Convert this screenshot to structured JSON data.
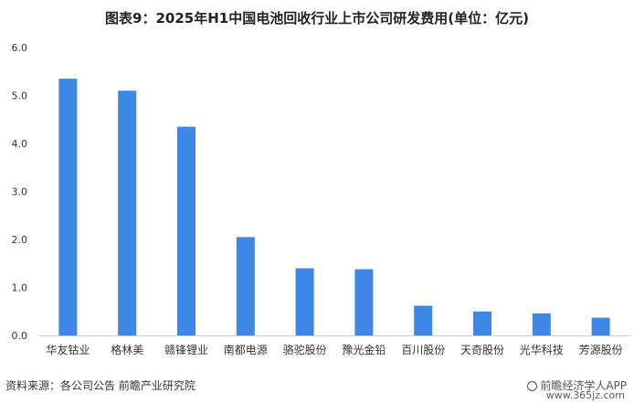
{
  "title": "图表9：2025年H1中国电池回收行业上市公司研发费用(单位：亿元)",
  "source": "资料来源：各公司公告 前瞻产业研究院",
  "brand": "前瞻经济学人APP",
  "site": "www.365jz.com",
  "colors": {
    "bar": "#3d87e6",
    "axis": "#cccccc",
    "text": "#333333"
  },
  "chart_data": {
    "type": "bar",
    "categories": [
      "华友钴业",
      "格林美",
      "赣锋锂业",
      "南都电源",
      "骆驼股份",
      "豫光金铅",
      "百川股份",
      "天奇股份",
      "光华科技",
      "芳源股份"
    ],
    "values": [
      5.35,
      5.1,
      4.35,
      2.05,
      1.4,
      1.38,
      0.62,
      0.5,
      0.46,
      0.37
    ],
    "ylim": [
      0,
      6
    ],
    "yticks": [
      "0.0",
      "1.0",
      "2.0",
      "3.0",
      "4.0",
      "5.0",
      "6.0"
    ],
    "grid": false,
    "legend": "none"
  }
}
